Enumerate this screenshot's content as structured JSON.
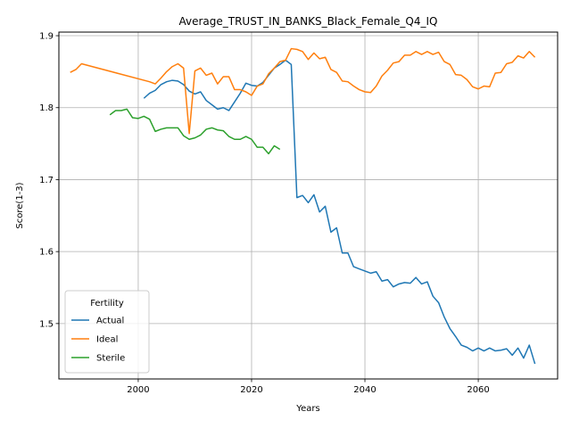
{
  "chart_data": {
    "type": "line",
    "title": "Average_TRUST_IN_BANKS_Black_Female_Q4_IQ",
    "xlabel": "Years",
    "ylabel": "Score(1-3)",
    "xlim": [
      1986,
      2074
    ],
    "ylim": [
      1.423,
      1.905
    ],
    "xticks": [
      2000,
      2020,
      2040,
      2060
    ],
    "yticks": [
      1.5,
      1.6,
      1.7,
      1.8,
      1.9
    ],
    "ytick_labels": [
      "1.5",
      "1.6",
      "1.7",
      "1.8",
      "1.9"
    ],
    "grid": true,
    "legend": {
      "title": "Fertility",
      "placement": "lower-left"
    },
    "series": [
      {
        "name": "Actual",
        "color": "#1f77b4",
        "x": [
          2001,
          2002,
          2003,
          2004,
          2005,
          2006,
          2007,
          2008,
          2009,
          2010,
          2011,
          2012,
          2013,
          2014,
          2015,
          2016,
          2017,
          2018,
          2019,
          2020,
          2021,
          2022,
          2023,
          2024,
          2025,
          2026,
          2027,
          2028,
          2029,
          2030,
          2031,
          2032,
          2033,
          2034,
          2035,
          2036,
          2037,
          2038,
          2039,
          2040,
          2041,
          2042,
          2043,
          2044,
          2045,
          2046,
          2047,
          2048,
          2049,
          2050,
          2051,
          2052,
          2053,
          2054,
          2055,
          2056,
          2057,
          2058,
          2059,
          2060,
          2061,
          2062,
          2063,
          2064,
          2065,
          2066,
          2067,
          2068,
          2069,
          2070
        ],
        "y": [
          1.813,
          1.82,
          1.824,
          1.832,
          1.836,
          1.838,
          1.837,
          1.832,
          1.823,
          1.819,
          1.822,
          1.81,
          1.804,
          1.798,
          1.8,
          1.796,
          1.808,
          1.82,
          1.834,
          1.831,
          1.83,
          1.835,
          1.845,
          1.855,
          1.86,
          1.866,
          1.86,
          1.675,
          1.678,
          1.668,
          1.679,
          1.655,
          1.663,
          1.627,
          1.633,
          1.598,
          1.598,
          1.579,
          1.576,
          1.573,
          1.57,
          1.572,
          1.559,
          1.561,
          1.551,
          1.555,
          1.557,
          1.556,
          1.564,
          1.555,
          1.558,
          1.538,
          1.529,
          1.509,
          1.493,
          1.482,
          1.47,
          1.467,
          1.462,
          1.466,
          1.462,
          1.466,
          1.462,
          1.463,
          1.465,
          1.456,
          1.466,
          1.452,
          1.47,
          1.444
        ]
      },
      {
        "name": "Ideal",
        "color": "#ff7f0e",
        "x": [
          1988,
          1989,
          1990,
          2002,
          2003,
          2004,
          2005,
          2006,
          2007,
          2008,
          2009,
          2010,
          2011,
          2012,
          2013,
          2014,
          2015,
          2016,
          2017,
          2018,
          2019,
          2020,
          2021,
          2022,
          2023,
          2024,
          2025,
          2026,
          2027,
          2028,
          2029,
          2030,
          2031,
          2032,
          2033,
          2034,
          2035,
          2036,
          2037,
          2038,
          2039,
          2040,
          2041,
          2042,
          2043,
          2044,
          2045,
          2046,
          2047,
          2048,
          2049,
          2050,
          2051,
          2052,
          2053,
          2054,
          2055,
          2056,
          2057,
          2058,
          2059,
          2060,
          2061,
          2062,
          2063,
          2064,
          2065,
          2066,
          2067,
          2068,
          2069,
          2070
        ],
        "y": [
          1.849,
          1.853,
          1.861,
          1.836,
          1.833,
          1.841,
          1.85,
          1.857,
          1.861,
          1.855,
          1.764,
          1.851,
          1.855,
          1.845,
          1.848,
          1.833,
          1.843,
          1.843,
          1.825,
          1.825,
          1.822,
          1.817,
          1.83,
          1.833,
          1.847,
          1.855,
          1.864,
          1.866,
          1.882,
          1.881,
          1.878,
          1.867,
          1.876,
          1.868,
          1.87,
          1.853,
          1.849,
          1.837,
          1.836,
          1.83,
          1.825,
          1.822,
          1.821,
          1.83,
          1.844,
          1.852,
          1.862,
          1.864,
          1.873,
          1.873,
          1.878,
          1.874,
          1.878,
          1.874,
          1.877,
          1.864,
          1.86,
          1.846,
          1.845,
          1.839,
          1.829,
          1.826,
          1.83,
          1.829,
          1.848,
          1.849,
          1.861,
          1.863,
          1.872,
          1.869,
          1.878,
          1.87
        ]
      },
      {
        "name": "Sterile",
        "color": "#2ca02c",
        "x": [
          1995,
          1996,
          1997,
          1998,
          1999,
          2000,
          2001,
          2002,
          2003,
          2004,
          2005,
          2006,
          2007,
          2008,
          2009,
          2010,
          2011,
          2012,
          2013,
          2014,
          2015,
          2016,
          2017,
          2018,
          2019,
          2020,
          2021,
          2022,
          2023,
          2024,
          2025
        ],
        "y": [
          1.79,
          1.796,
          1.796,
          1.798,
          1.786,
          1.785,
          1.788,
          1.784,
          1.767,
          1.77,
          1.772,
          1.772,
          1.772,
          1.761,
          1.756,
          1.758,
          1.762,
          1.77,
          1.772,
          1.769,
          1.768,
          1.76,
          1.756,
          1.756,
          1.76,
          1.756,
          1.745,
          1.745,
          1.736,
          1.747,
          1.742
        ]
      }
    ]
  }
}
